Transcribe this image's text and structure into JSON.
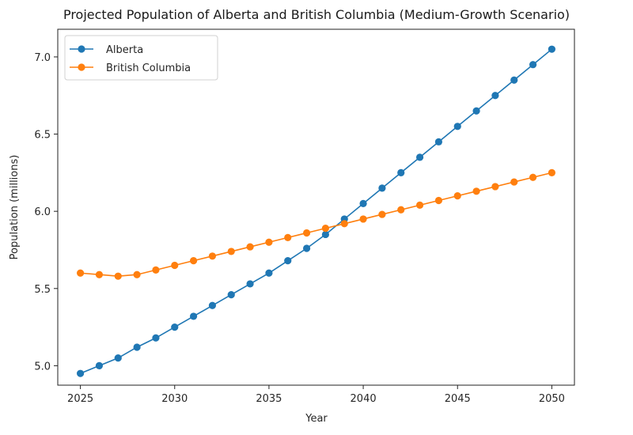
{
  "chart_data": {
    "type": "line",
    "title": "Projected Population of Alberta and British Columbia (Medium-Growth Scenario)",
    "xlabel": "Year",
    "ylabel": "Population (millions)",
    "x": [
      2025,
      2026,
      2027,
      2028,
      2029,
      2030,
      2031,
      2032,
      2033,
      2034,
      2035,
      2036,
      2037,
      2038,
      2039,
      2040,
      2041,
      2042,
      2043,
      2044,
      2045,
      2046,
      2047,
      2048,
      2049,
      2050
    ],
    "xticks": [
      2025,
      2030,
      2035,
      2040,
      2045,
      2050
    ],
    "xtick_labels": [
      "2025",
      "2030",
      "2035",
      "2040",
      "2045",
      "2050"
    ],
    "yticks": [
      5.0,
      5.5,
      6.0,
      6.5,
      7.0
    ],
    "ytick_labels": [
      "5.0",
      "5.5",
      "6.0",
      "6.5",
      "7.0"
    ],
    "xlim": [
      2023.8,
      2051.2
    ],
    "ylim": [
      4.874,
      7.179
    ],
    "grid": false,
    "legend_position": "upper-left",
    "series": [
      {
        "name": "Alberta",
        "color": "#1f77b4",
        "marker": "circle",
        "values": [
          4.95,
          5.0,
          5.05,
          5.12,
          5.18,
          5.25,
          5.32,
          5.39,
          5.46,
          5.53,
          5.6,
          5.68,
          5.76,
          5.85,
          5.95,
          6.05,
          6.15,
          6.25,
          6.35,
          6.45,
          6.55,
          6.65,
          6.75,
          6.85,
          6.95,
          7.05
        ]
      },
      {
        "name": "British Columbia",
        "color": "#ff7f0e",
        "marker": "circle",
        "values": [
          5.6,
          5.59,
          5.58,
          5.59,
          5.62,
          5.65,
          5.68,
          5.71,
          5.74,
          5.77,
          5.8,
          5.83,
          5.86,
          5.89,
          5.92,
          5.95,
          5.98,
          6.01,
          6.04,
          6.07,
          6.1,
          6.13,
          6.16,
          6.19,
          6.22,
          6.25
        ]
      }
    ]
  }
}
